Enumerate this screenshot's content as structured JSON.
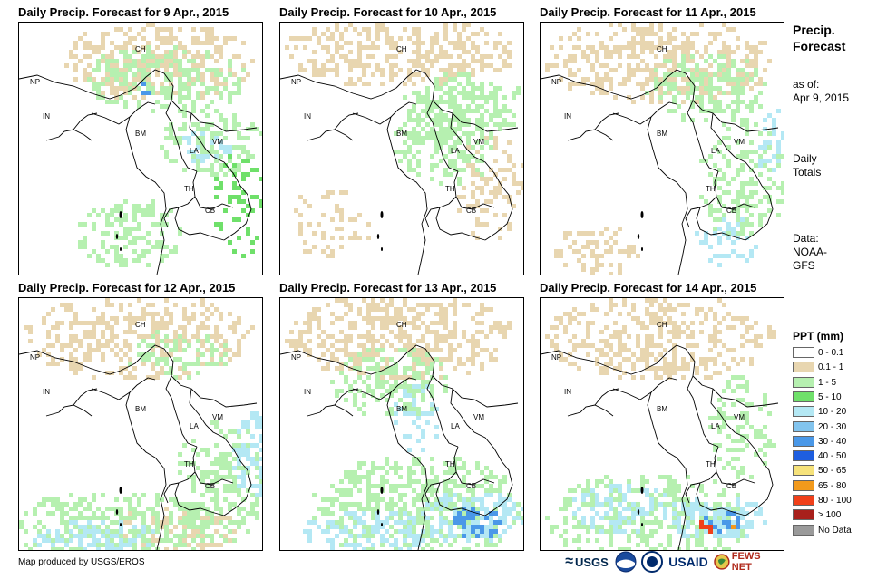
{
  "panels": [
    {
      "title": "Daily Precip. Forecast for 9 Apr., 2015"
    },
    {
      "title": "Daily Precip. Forecast for 10 Apr., 2015"
    },
    {
      "title": "Daily Precip. Forecast for 11 Apr., 2015"
    },
    {
      "title": "Daily Precip. Forecast for 12 Apr., 2015"
    },
    {
      "title": "Daily Precip. Forecast for 13 Apr., 2015"
    },
    {
      "title": "Daily Precip. Forecast for 14 Apr., 2015"
    }
  ],
  "country_labels": {
    "ch": "CH",
    "np": "NP",
    "in": "IN",
    "bm": "BM",
    "la": "LA",
    "vm": "VM",
    "th": "TH",
    "cb": "CB"
  },
  "side": {
    "title_line1": "Precip.",
    "title_line2": "Forecast",
    "asof_line1": "as of:",
    "asof_line2": "Apr 9, 2015",
    "daily_line1": "Daily",
    "daily_line2": "Totals",
    "data_line1": "Data:",
    "data_line2": "NOAA-",
    "data_line3": "GFS"
  },
  "legend": {
    "title": "PPT (mm)",
    "items": [
      {
        "label": "0 - 0.1",
        "color": "#ffffff"
      },
      {
        "label": "0.1 - 1",
        "color": "#e8d6b0"
      },
      {
        "label": "1 - 5",
        "color": "#b6f0b0"
      },
      {
        "label": "5 - 10",
        "color": "#6fe06a"
      },
      {
        "label": "10 - 20",
        "color": "#b4e8f4"
      },
      {
        "label": "20 - 30",
        "color": "#82c4ee"
      },
      {
        "label": "30 - 40",
        "color": "#4a98e8"
      },
      {
        "label": "40 - 50",
        "color": "#1e5ee0"
      },
      {
        "label": "50 - 65",
        "color": "#f6e27a"
      },
      {
        "label": "65 - 80",
        "color": "#f29a1c"
      },
      {
        "label": "80 - 100",
        "color": "#f0401a"
      },
      {
        "label": "> 100",
        "color": "#a8201c"
      },
      {
        "label": "No Data",
        "color": "#9a9a9a"
      }
    ]
  },
  "footer": {
    "credit": "Map produced by USGS/EROS",
    "logos": {
      "usgs": "USGS",
      "usaid": "USAID",
      "fewsnet": "FEWS NET"
    }
  }
}
